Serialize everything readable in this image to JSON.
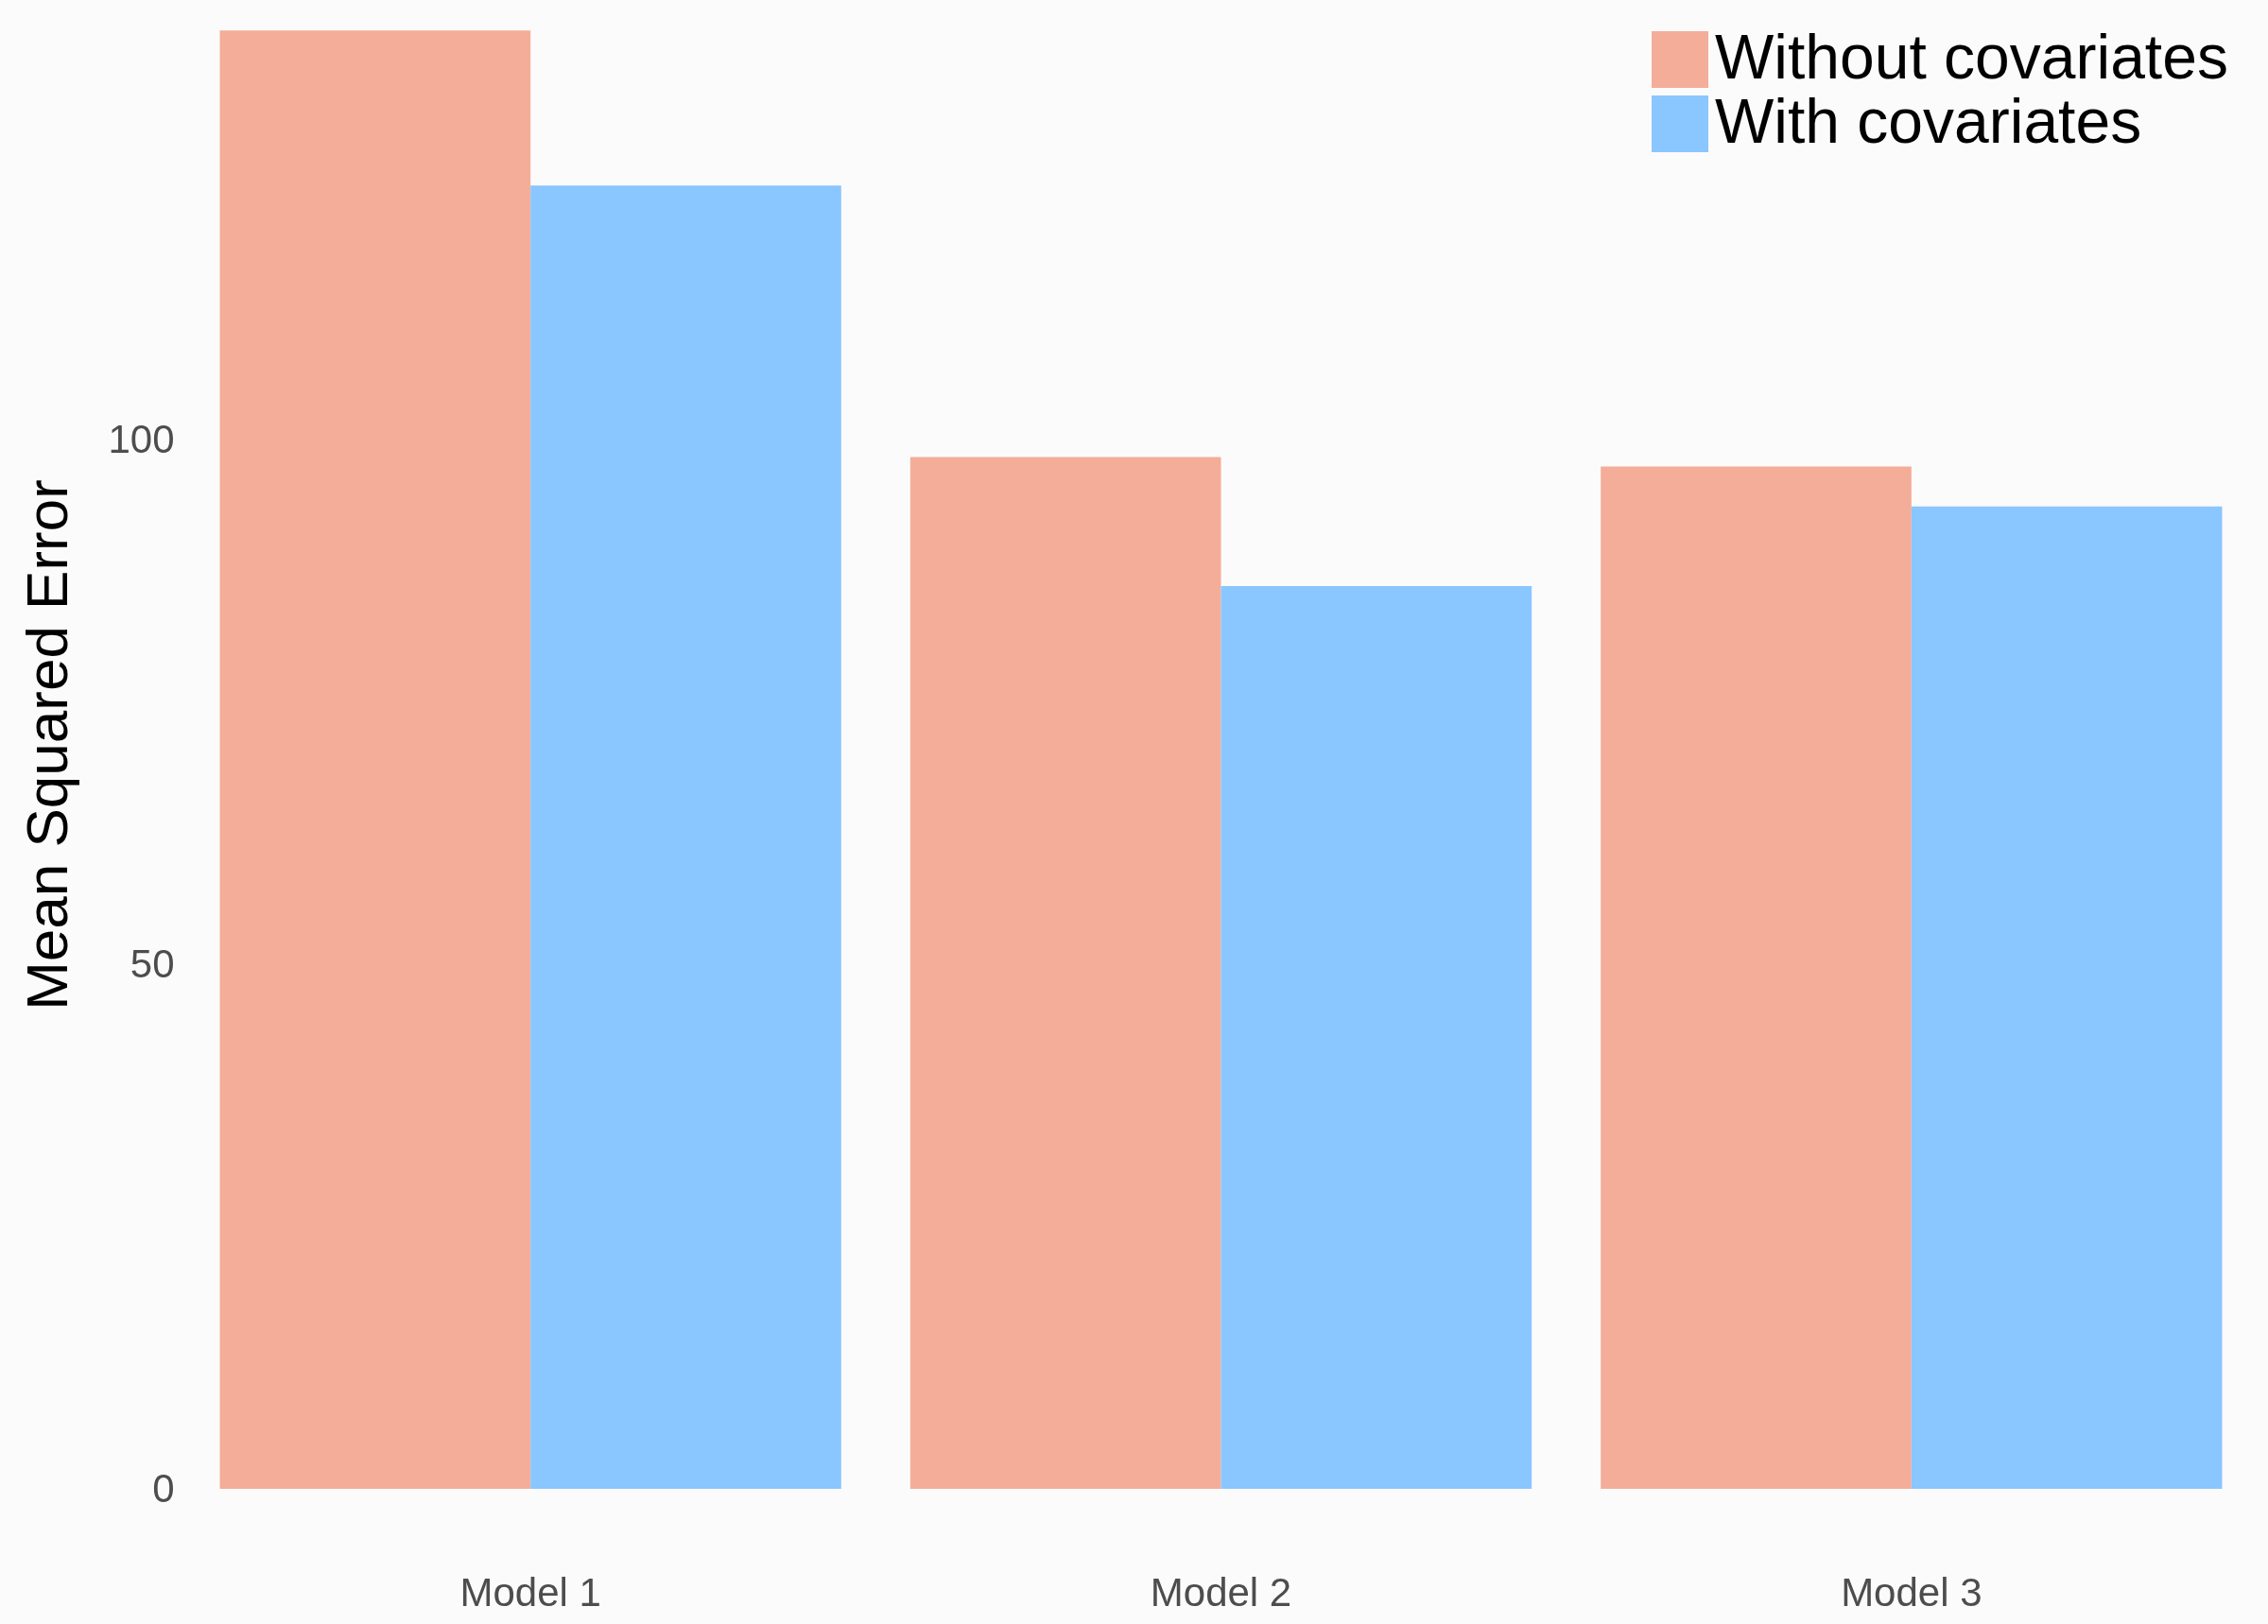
{
  "chart_data": {
    "type": "bar",
    "ylabel": "Mean Squared Error",
    "categories": [
      "Model 1",
      "Model 2",
      "Model 3"
    ],
    "series": [
      {
        "name": "Without covariates",
        "color": "#f4ad98",
        "values": [
          139.1,
          98.4,
          97.5
        ]
      },
      {
        "name": "With covariates",
        "color": "#8ac6ff",
        "values": [
          124.3,
          86.1,
          93.7
        ]
      }
    ],
    "ylim": [
      0,
      142
    ],
    "yticks": [
      0,
      50,
      100
    ],
    "grid": false,
    "legend": "top right"
  }
}
